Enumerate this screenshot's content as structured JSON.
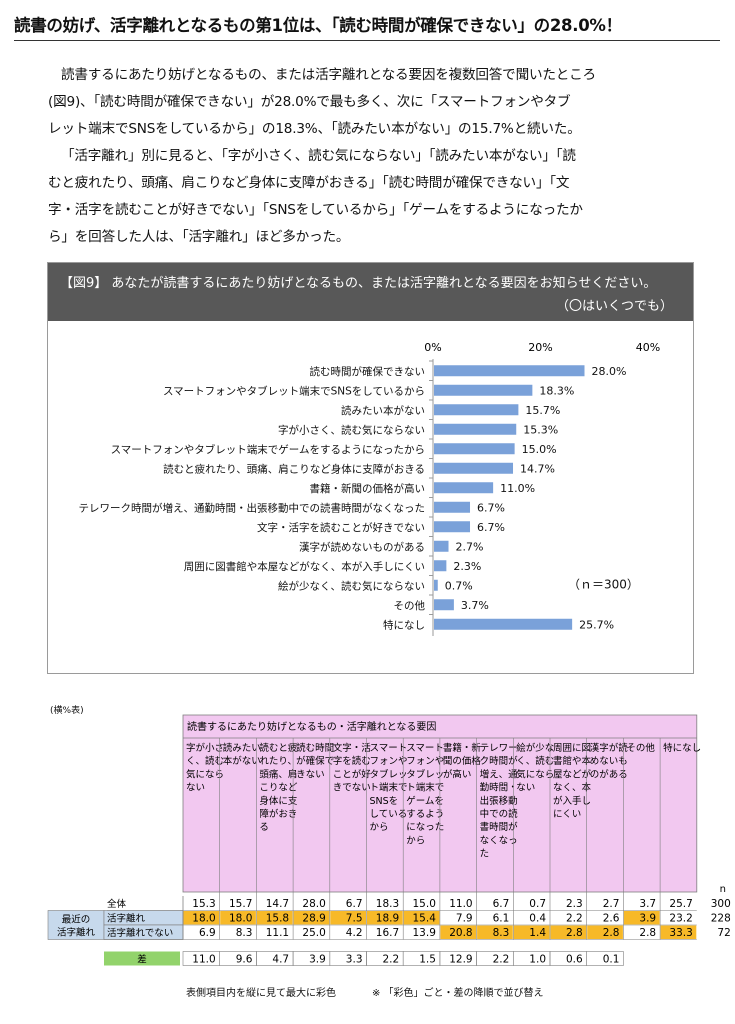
{
  "headline": "読書の妨げ、活字離れとなるもの第1位は、「読む時間が確保できない」の28.0%！",
  "body": {
    "p1": [
      "読書するにあたり妨げとなるもの、または活字離れとなる要因を複数回答で聞いたところ",
      "(図9)、「読む時間が確保できない」が28.0%で最も多く、次に「スマートフォンやタブ",
      "レット端末でSNSをしているから」の18.3%、「読みたい本がない」の15.7%と続いた。"
    ],
    "p2": [
      "「活字離れ」別に見ると、「字が小さく、読む気にならない」「読みたい本がない」「読",
      "むと疲れたり、頭痛、肩こりなど身体に支障がおきる」「読む時間が確保できない」「文",
      "字・活字を読むことが好きでない」「SNSをしているから」「ゲームをするようになったか",
      "ら」を回答した人は、「活字離れ」ほど多かった。"
    ]
  },
  "figure": {
    "title": "【図9】 あなたが読書するにあたり妨げとなるもの、または活字離れとなる要因をお知らせください。",
    "subtitle": "（〇はいくつでも）"
  },
  "chart_data": {
    "type": "bar",
    "orientation": "horizontal",
    "categories": [
      "読む時間が確保できない",
      "スマートフォンやタブレット端末でSNSをしているから",
      "読みたい本がない",
      "字が小さく、読む気にならない",
      "スマートフォンやタブレット端末でゲームをするようになったから",
      "読むと疲れたり、頭痛、肩こりなど身体に支障がおきる",
      "書籍・新聞の価格が高い",
      "テレワーク時間が増え、通勤時間・出張移動中での読書時間がなくなった",
      "文字・活字を読むことが好きでない",
      "漢字が読めないものがある",
      "周囲に図書館や本屋などがなく、本が入手しにくい",
      "絵が少なく、読む気にならない",
      "その他",
      "特になし"
    ],
    "values": [
      28.0,
      18.3,
      15.7,
      15.3,
      15.0,
      14.7,
      11.0,
      6.7,
      6.7,
      2.7,
      2.3,
      0.7,
      3.7,
      25.7
    ],
    "value_labels": [
      "28.0%",
      "18.3%",
      "15.7%",
      "15.3%",
      "15.0%",
      "14.7%",
      "11.0%",
      "6.7%",
      "6.7%",
      "2.7%",
      "2.3%",
      "0.7%",
      "3.7%",
      "25.7%"
    ],
    "ticks": [
      "0%",
      "20%",
      "40%"
    ],
    "xlim": [
      0,
      40
    ],
    "note": "（ｎ＝300）",
    "bar_color": "#7aa1d9"
  },
  "table": {
    "note": "(横%表)",
    "header": "読書するにあたり妨げとなるもの・活字離れとなる要因",
    "columns": [
      "字が小さく、読む気にならない",
      "読みたい本がない",
      "読むと疲れたり、頭痛、肩こりなど身体に支障がおきる",
      "読む時間が確保できない",
      "文字・活字を読むことが好きでない",
      "スマートフォンやタブレット端末でSNSをしているから",
      "スマートフォンやタブレット端末でゲームをするようになったから",
      "書籍・新聞の価格が高い",
      "テレワーク時間が増え、通勤時間・出張移動中での読書時間がなくなった",
      "絵が少なく、読む気にならない",
      "周囲に図書館や本屋などがなく、本が入手しにくい",
      "漢字が読めないものがある",
      "その他",
      "特になし"
    ],
    "n_header": "n",
    "group_label": "最近の活字離れ",
    "rows": [
      {
        "label": "全体",
        "values": [
          "15.3",
          "15.7",
          "14.7",
          "28.0",
          "6.7",
          "18.3",
          "15.0",
          "11.0",
          "6.7",
          "0.7",
          "2.3",
          "2.7",
          "3.7",
          "25.7"
        ],
        "n": "300",
        "highlight": []
      },
      {
        "label": "活字離れ",
        "values": [
          "18.0",
          "18.0",
          "15.8",
          "28.9",
          "7.5",
          "18.9",
          "15.4",
          "7.9",
          "6.1",
          "0.4",
          "2.2",
          "2.6",
          "3.9",
          "23.2"
        ],
        "n": "228",
        "highlight": [
          0,
          1,
          2,
          3,
          4,
          5,
          6,
          12
        ]
      },
      {
        "label": "活字離れでない",
        "values": [
          "6.9",
          "8.3",
          "11.1",
          "25.0",
          "4.2",
          "16.7",
          "13.9",
          "20.8",
          "8.3",
          "1.4",
          "2.8",
          "2.8",
          "2.8",
          "33.3"
        ],
        "n": "72",
        "highlight": [
          7,
          8,
          9,
          10,
          11,
          13
        ]
      }
    ],
    "diff_label": "差",
    "diff": [
      "11.0",
      "9.6",
      "4.7",
      "3.9",
      "3.3",
      "2.2",
      "1.5",
      "12.9",
      "2.2",
      "1.0",
      "0.6",
      "0.1"
    ],
    "footnote1": "表側項目内を縦に見て最大に彩色",
    "footnote2": "※ 「彩色」ごと・差の降順で並び替え",
    "colors": {
      "header_bg": "#f2c8f0",
      "row_label_bg": "#c7d9ec",
      "highlight": "#f7b928",
      "diff_bg": "#92d36b"
    }
  }
}
